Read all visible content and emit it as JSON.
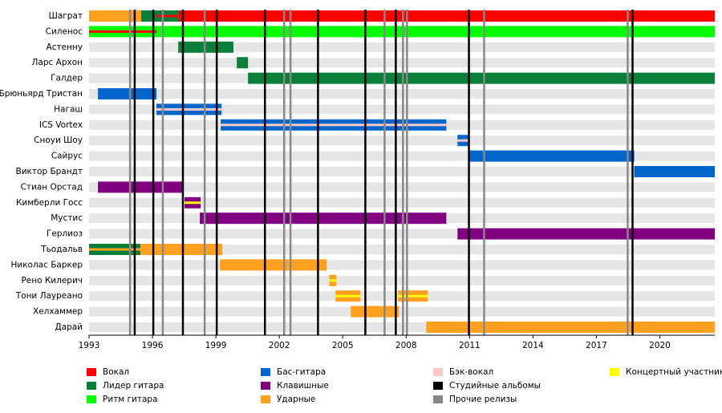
{
  "chart_data": {
    "type": "timeline",
    "xlim": [
      1993,
      2022.6
    ],
    "xticks": [
      1993,
      1996,
      1999,
      2002,
      2005,
      2008,
      2011,
      2014,
      2017,
      2020
    ],
    "series": [
      {
        "name": "Вокал",
        "color": "#ff0000"
      },
      {
        "name": "Лидер гитара",
        "color": "#0a7f3a"
      },
      {
        "name": "Ритм гитара",
        "color": "#00ff00"
      },
      {
        "name": "Бас-гитара",
        "color": "#0066cc"
      },
      {
        "name": "Клавишные",
        "color": "#800080"
      },
      {
        "name": "Ударные",
        "color": "#ffa020"
      },
      {
        "name": "Бэк-вокал",
        "color": "#ffc8c8"
      },
      {
        "name": "Студийные альбомы",
        "color": "#000000",
        "values": [
          1995.16,
          1996.04,
          1997.44,
          1999.04,
          2001.32,
          2003.83,
          2006.07,
          2007.51,
          2010.97,
          2018.71
        ]
      },
      {
        "name": "Прочие релизы",
        "color": "#888888",
        "values": [
          1994.94,
          1996.49,
          1998.47,
          2002.23,
          2002.53,
          2006.98,
          2007.85,
          2008.04,
          2011.69,
          2018.48
        ]
      },
      {
        "name": "Концертный участник",
        "color": "#ffff00"
      }
    ],
    "members": [
      {
        "name": "Шаграт",
        "bars": [
          {
            "role": "Вокал",
            "start": 1993,
            "end": 2022.6,
            "style": "thick"
          },
          {
            "role": "Ударные",
            "start": 1993,
            "end": 1995.47,
            "style": "thick"
          },
          {
            "role": "Лидер гитара",
            "start": 1995.47,
            "end": 1997.25,
            "style": "thick"
          },
          {
            "role": "Вокал",
            "start": 1996.19,
            "end": 1997.25,
            "style": "thin"
          }
        ]
      },
      {
        "name": "Силенос",
        "bars": [
          {
            "role": "Ритм гитара",
            "start": 1993,
            "end": 2022.6,
            "style": "thick"
          },
          {
            "role": "Вокал",
            "start": 1993,
            "end": 1996.19,
            "style": "thin"
          }
        ]
      },
      {
        "name": "Астенну",
        "bars": [
          {
            "role": "Лидер гитара",
            "start": 1997.22,
            "end": 1999.83,
            "style": "thick"
          }
        ]
      },
      {
        "name": "Ларс Архон",
        "bars": [
          {
            "role": "Лидер гитара",
            "start": 1999.99,
            "end": 2000.52,
            "style": "thick"
          }
        ]
      },
      {
        "name": "Галдер",
        "bars": [
          {
            "role": "Лидер гитара",
            "start": 2000.52,
            "end": 2022.6,
            "style": "thick"
          }
        ]
      },
      {
        "name": "Брюньярд Тристан",
        "bars": [
          {
            "role": "Бас-гитара",
            "start": 1993.42,
            "end": 1996.19,
            "style": "thick"
          }
        ]
      },
      {
        "name": "Нагаш",
        "bars": [
          {
            "role": "Бас-гитара",
            "start": 1996.19,
            "end": 1999.27,
            "style": "thick"
          },
          {
            "role": "Бэк-вокал",
            "start": 1996.19,
            "end": 1999.27,
            "style": "thin"
          }
        ]
      },
      {
        "name": "ICS Vortex",
        "bars": [
          {
            "role": "Бас-гитара",
            "start": 1999.23,
            "end": 2009.9,
            "style": "thick"
          },
          {
            "role": "Бэк-вокал",
            "start": 1999.23,
            "end": 2009.9,
            "style": "thin"
          }
        ]
      },
      {
        "name": "Сноуи Шоу",
        "bars": [
          {
            "role": "Бас-гитара",
            "start": 2010.43,
            "end": 2010.93,
            "style": "thick"
          },
          {
            "role": "Бэк-вокал",
            "start": 2010.43,
            "end": 2010.93,
            "style": "thin"
          }
        ]
      },
      {
        "name": "Сайрус",
        "bars": [
          {
            "role": "Бас-гитара",
            "start": 2010.93,
            "end": 2018.79,
            "style": "thick"
          }
        ]
      },
      {
        "name": "Виктор Брандт",
        "bars": [
          {
            "role": "Бас-гитара",
            "start": 2018.79,
            "end": 2022.6,
            "style": "thick"
          }
        ]
      },
      {
        "name": "Стиан Орстад",
        "bars": [
          {
            "role": "Клавишные",
            "start": 1993.42,
            "end": 1997.44,
            "style": "thick"
          }
        ]
      },
      {
        "name": "Кимберли Госс",
        "bars": [
          {
            "role": "Клавишные",
            "start": 1997.52,
            "end": 1998.28,
            "style": "thick"
          },
          {
            "role": "Концертный участник",
            "start": 1997.52,
            "end": 1998.28,
            "style": "thin"
          }
        ]
      },
      {
        "name": "Мустис",
        "bars": [
          {
            "role": "Клавишные",
            "start": 1998.24,
            "end": 2009.9,
            "style": "thick"
          }
        ]
      },
      {
        "name": "Герлиоз",
        "bars": [
          {
            "role": "Клавишные",
            "start": 2010.43,
            "end": 2022.6,
            "style": "thick"
          }
        ]
      },
      {
        "name": "Тьодальв",
        "bars": [
          {
            "role": "Лидер гитара",
            "start": 1993,
            "end": 1995.43,
            "style": "thick"
          },
          {
            "role": "Ударные",
            "start": 1993,
            "end": 1995.43,
            "style": "thin"
          },
          {
            "role": "Ударные",
            "start": 1995.43,
            "end": 1999.3,
            "style": "thick"
          }
        ]
      },
      {
        "name": "Николас Баркер",
        "bars": [
          {
            "role": "Ударные",
            "start": 1999.19,
            "end": 2004.24,
            "style": "thick"
          }
        ]
      },
      {
        "name": "Рено Килерич",
        "bars": [
          {
            "role": "Ударные",
            "start": 2004.36,
            "end": 2004.7,
            "style": "thick"
          },
          {
            "role": "Концертный участник",
            "start": 2004.36,
            "end": 2004.7,
            "style": "thin"
          }
        ]
      },
      {
        "name": "Тони Лауреано",
        "bars": [
          {
            "role": "Ударные",
            "start": 2004.66,
            "end": 2005.84,
            "style": "thick"
          },
          {
            "role": "Концертный участник",
            "start": 2004.66,
            "end": 2005.84,
            "style": "thin"
          },
          {
            "role": "Ударные",
            "start": 2007.62,
            "end": 2009.03,
            "style": "thick"
          },
          {
            "role": "Концертный участник",
            "start": 2007.62,
            "end": 2009.03,
            "style": "thin"
          }
        ]
      },
      {
        "name": "Хелхаммер",
        "bars": [
          {
            "role": "Ударные",
            "start": 2005.38,
            "end": 2007.66,
            "style": "thick"
          }
        ]
      },
      {
        "name": "Дарай",
        "bars": [
          {
            "role": "Ударные",
            "start": 2008.95,
            "end": 2022.6,
            "style": "thick"
          }
        ]
      }
    ]
  }
}
